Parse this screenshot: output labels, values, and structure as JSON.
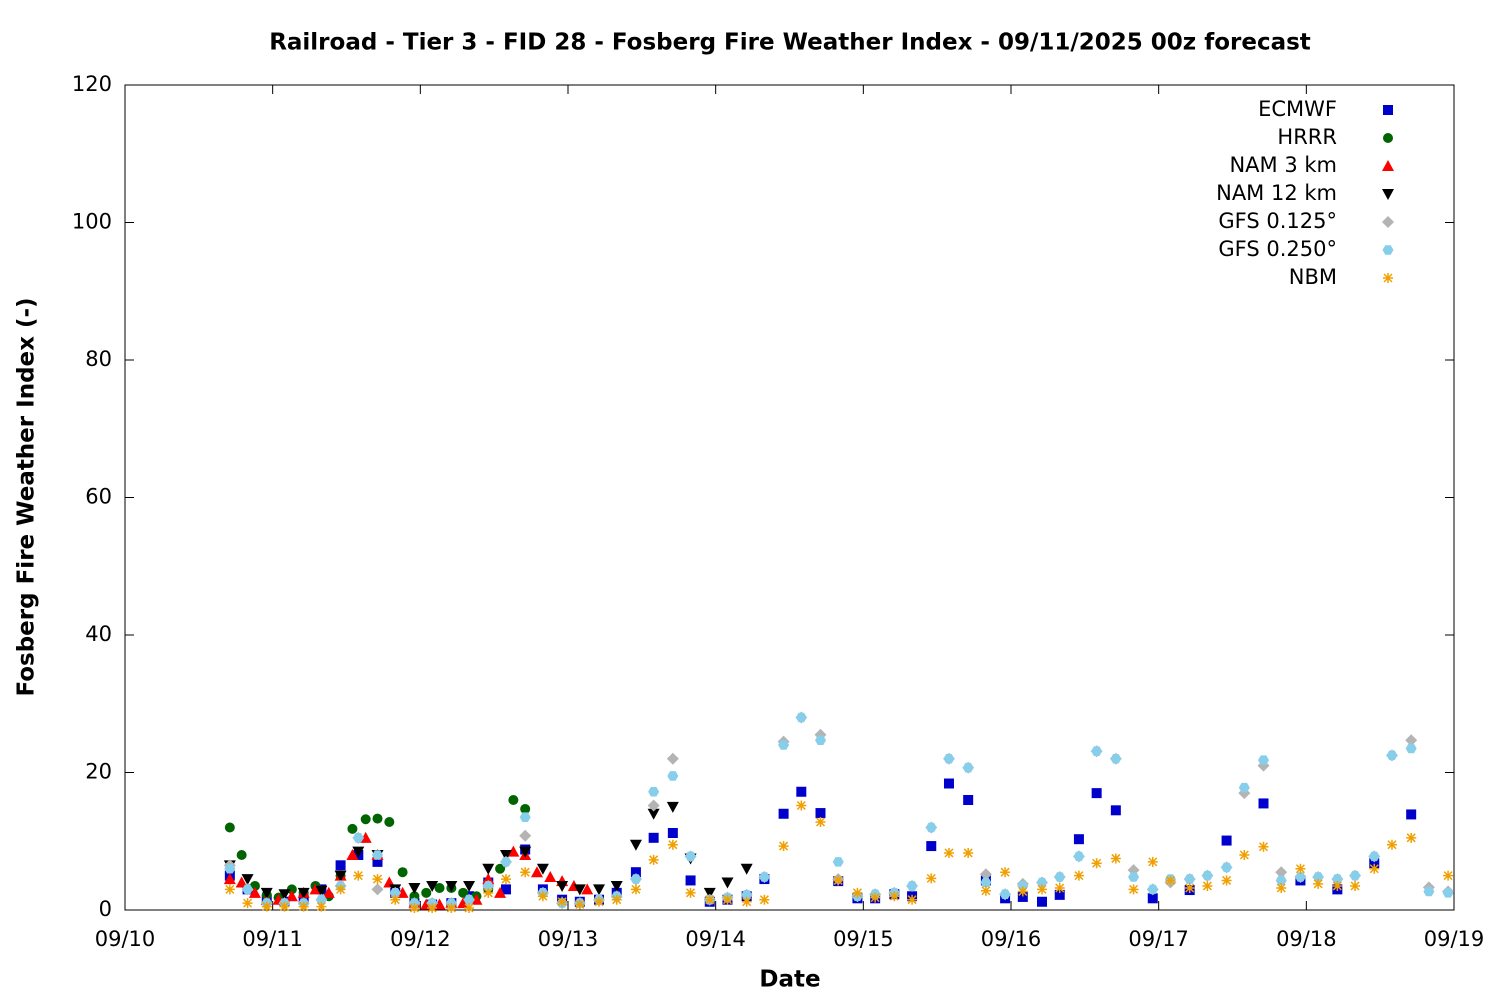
{
  "chart_data": {
    "type": "scatter",
    "title": "Railroad - Tier 3 - FID 28 - Fosberg Fire Weather Index - 09/11/2025 00z forecast",
    "xlabel": "Date",
    "ylabel": "Fosberg Fire Weather Index (-)",
    "xlim": [
      0,
      9
    ],
    "xticks": [
      {
        "value": 0,
        "label": "09/10"
      },
      {
        "value": 1,
        "label": "09/11"
      },
      {
        "value": 2,
        "label": "09/12"
      },
      {
        "value": 3,
        "label": "09/13"
      },
      {
        "value": 4,
        "label": "09/14"
      },
      {
        "value": 5,
        "label": "09/15"
      },
      {
        "value": 6,
        "label": "09/16"
      },
      {
        "value": 7,
        "label": "09/17"
      },
      {
        "value": 8,
        "label": "09/18"
      },
      {
        "value": 9,
        "label": "09/19"
      }
    ],
    "ylim": [
      0,
      120
    ],
    "yticks": [
      0,
      20,
      40,
      60,
      80,
      100,
      120
    ],
    "grid": false,
    "legend": "top right",
    "series": [
      {
        "name": "ECMWF",
        "color": "#0000cc",
        "marker": "square",
        "x": [
          0.71,
          0.83,
          0.96,
          1.08,
          1.21,
          1.33,
          1.46,
          1.58,
          1.71,
          1.83,
          1.96,
          2.08,
          2.21,
          2.33,
          2.46,
          2.58,
          2.71,
          2.83,
          2.96,
          3.08,
          3.21,
          3.33,
          3.46,
          3.58,
          3.71,
          3.83,
          3.96,
          4.08,
          4.21,
          4.33,
          4.46,
          4.58,
          4.71,
          4.83,
          4.96,
          5.08,
          5.21,
          5.33,
          5.46,
          5.58,
          5.71,
          5.83,
          5.96,
          6.08,
          6.21,
          6.33,
          6.46,
          6.58,
          6.71,
          6.96,
          7.21,
          7.46,
          7.71,
          7.96,
          8.21,
          8.46,
          8.71
        ],
        "values": [
          5,
          3,
          1.5,
          1.2,
          1.5,
          3,
          6.5,
          8,
          7,
          2.5,
          1,
          0.8,
          1,
          2,
          4,
          3,
          8.8,
          3,
          1.5,
          1.2,
          1.5,
          2.5,
          5.5,
          10.5,
          11.2,
          4.3,
          1.2,
          1.5,
          2,
          4.5,
          14,
          17.2,
          14.1,
          4.2,
          1.7,
          1.7,
          2.3,
          2,
          9.3,
          18.4,
          16,
          4.3,
          1.7,
          1.9,
          1.2,
          2.2,
          10.3,
          17,
          14.5,
          1.7,
          2.9,
          10.1,
          15.5,
          4.3,
          3,
          6.8,
          13.9
        ]
      },
      {
        "name": "HRRR",
        "color": "#006400",
        "marker": "circle",
        "x": [
          0.71,
          0.79,
          0.88,
          0.96,
          1.04,
          1.13,
          1.21,
          1.29,
          1.38,
          1.46,
          1.54,
          1.63,
          1.71,
          1.79,
          1.88,
          1.96,
          2.04,
          2.13,
          2.21,
          2.29,
          2.38,
          2.46,
          2.54,
          2.63,
          2.71
        ],
        "values": [
          12,
          8,
          3.5,
          2.2,
          1.8,
          3,
          2.5,
          3.5,
          2,
          5,
          11.8,
          13.2,
          13.3,
          12.8,
          5.5,
          2,
          2.5,
          3.2,
          3.2,
          2.5,
          2,
          3,
          6,
          16,
          14.7
        ]
      },
      {
        "name": "NAM 3 km",
        "color": "#ff0000",
        "marker": "triangle",
        "x": [
          0.71,
          0.79,
          0.88,
          0.96,
          1.04,
          1.13,
          1.21,
          1.29,
          1.38,
          1.46,
          1.54,
          1.63,
          1.71,
          1.79,
          1.88,
          1.96,
          2.04,
          2.13,
          2.21,
          2.29,
          2.38,
          2.46,
          2.54,
          2.63,
          2.71,
          2.79,
          2.88,
          2.96,
          3.04,
          3.13
        ],
        "values": [
          4.5,
          4,
          2.5,
          1.5,
          1.5,
          2,
          2.5,
          3,
          2.5,
          5,
          8,
          10.5,
          8,
          4,
          2.5,
          1,
          0.8,
          0.8,
          1,
          1,
          1.5,
          4.5,
          2.5,
          8.5,
          8,
          5.5,
          4.8,
          4.2,
          3.5,
          3
        ]
      },
      {
        "name": "NAM 12 km",
        "color": "#000000",
        "marker": "triangle-down",
        "x": [
          0.71,
          0.83,
          0.96,
          1.08,
          1.21,
          1.33,
          1.46,
          1.58,
          1.71,
          1.83,
          1.96,
          2.08,
          2.21,
          2.33,
          2.46,
          2.58,
          2.71,
          2.83,
          2.96,
          3.08,
          3.21,
          3.33,
          3.46,
          3.58,
          3.71,
          3.83,
          3.96,
          4.08,
          4.21
        ],
        "values": [
          6.5,
          4.5,
          2.5,
          2.3,
          2.5,
          2.8,
          5,
          8.5,
          8,
          3,
          3.2,
          3.5,
          3.5,
          3.5,
          6,
          8,
          8.5,
          6,
          3.5,
          3,
          3,
          3.5,
          9.5,
          14,
          15,
          7.5,
          2.5,
          4,
          6
        ]
      },
      {
        "name": "GFS 0.125°",
        "color": "#b4b4b4",
        "marker": "diamond",
        "x": [
          0.71,
          0.83,
          0.96,
          1.08,
          1.21,
          1.33,
          1.46,
          1.58,
          1.71,
          1.83,
          1.96,
          2.08,
          2.21,
          2.33,
          2.46,
          2.58,
          2.71,
          2.83,
          2.96,
          3.08,
          3.21,
          3.33,
          3.46,
          3.58,
          3.71,
          3.83,
          3.96,
          4.08,
          4.21,
          4.33,
          4.46,
          4.58,
          4.71,
          4.83,
          4.96,
          5.08,
          5.21,
          5.33,
          5.46,
          5.58,
          5.71,
          5.83,
          5.96,
          6.08,
          6.21,
          6.33,
          6.46,
          6.58,
          6.71,
          6.83,
          6.96,
          7.08,
          7.21,
          7.33,
          7.46,
          7.58,
          7.71,
          7.83,
          7.96,
          8.08,
          8.21,
          8.33,
          8.46,
          8.58,
          8.71,
          8.83,
          8.96
        ],
        "values": [
          6.5,
          3,
          1,
          1,
          1,
          1.5,
          3.5,
          10.5,
          3,
          2.5,
          1,
          1,
          1,
          1.5,
          3.5,
          7,
          10.8,
          2.5,
          1,
          1,
          1.5,
          2,
          4.5,
          15.2,
          22,
          7.8,
          1.5,
          1.8,
          2.2,
          4.8,
          24.5,
          28,
          25.5,
          4.5,
          2,
          2.3,
          2.5,
          3.5,
          12,
          22,
          20.7,
          5.2,
          2.3,
          3.8,
          4,
          4.8,
          7.8,
          23.1,
          22,
          5.8,
          3,
          4,
          4.5,
          5,
          6.2,
          17,
          21,
          5.5,
          4.8,
          4.8,
          4.5,
          5,
          7.8,
          22.5,
          24.7,
          3.3,
          2.7
        ]
      },
      {
        "name": "GFS 0.250°",
        "color": "#87ceeb",
        "marker": "hexagon",
        "x": [
          0.71,
          0.83,
          0.96,
          1.08,
          1.21,
          1.33,
          1.46,
          1.58,
          1.71,
          1.83,
          1.96,
          2.08,
          2.21,
          2.33,
          2.46,
          2.58,
          2.71,
          2.83,
          2.96,
          3.08,
          3.21,
          3.33,
          3.46,
          3.58,
          3.71,
          3.83,
          3.96,
          4.08,
          4.21,
          4.33,
          4.46,
          4.58,
          4.71,
          4.83,
          4.96,
          5.08,
          5.21,
          5.33,
          5.46,
          5.58,
          5.71,
          5.83,
          5.96,
          6.08,
          6.21,
          6.33,
          6.46,
          6.58,
          6.71,
          6.83,
          6.96,
          7.08,
          7.21,
          7.33,
          7.46,
          7.58,
          7.71,
          7.83,
          7.96,
          8.08,
          8.21,
          8.33,
          8.46,
          8.58,
          8.71,
          8.83,
          8.96
        ],
        "values": [
          6,
          3,
          1,
          1,
          1,
          1.5,
          3.5,
          10.5,
          8,
          2.5,
          1,
          1,
          1,
          1.5,
          3.5,
          7,
          13.5,
          2.5,
          1,
          1,
          1.5,
          2,
          4.5,
          17.2,
          19.5,
          7.8,
          1.5,
          1.8,
          2.2,
          4.8,
          24,
          28,
          24.7,
          7,
          2,
          2.3,
          2.5,
          3.5,
          12,
          22,
          20.7,
          4,
          2.3,
          3.5,
          4,
          4.8,
          7.8,
          23.1,
          22,
          4.8,
          3,
          4.5,
          4.5,
          5,
          6.2,
          17.8,
          21.8,
          4.3,
          4.8,
          4.8,
          4.5,
          5,
          7.8,
          22.5,
          23.5,
          2.7,
          2.5
        ]
      },
      {
        "name": "NBM",
        "color": "#f0a000",
        "marker": "asterisk",
        "x": [
          0.71,
          0.83,
          0.96,
          1.08,
          1.21,
          1.33,
          1.46,
          1.58,
          1.71,
          1.83,
          1.96,
          2.08,
          2.21,
          2.33,
          2.46,
          2.58,
          2.71,
          2.83,
          2.96,
          3.08,
          3.21,
          3.33,
          3.46,
          3.58,
          3.71,
          3.83,
          3.96,
          4.08,
          4.21,
          4.33,
          4.46,
          4.58,
          4.71,
          4.83,
          4.96,
          5.08,
          5.21,
          5.33,
          5.46,
          5.58,
          5.71,
          5.83,
          5.96,
          6.08,
          6.21,
          6.33,
          6.46,
          6.58,
          6.71,
          6.83,
          6.96,
          7.08,
          7.21,
          7.33,
          7.46,
          7.58,
          7.71,
          7.83,
          7.96,
          8.08,
          8.21,
          8.33,
          8.46,
          8.58,
          8.71,
          8.96
        ],
        "values": [
          3,
          1,
          0.5,
          0.5,
          0.5,
          0.5,
          3,
          5,
          4.5,
          1.5,
          0.3,
          0.3,
          0.3,
          0.3,
          2.5,
          4.5,
          5.5,
          2,
          1.2,
          0.8,
          1.2,
          1.5,
          3,
          7.3,
          9.5,
          2.5,
          1.5,
          1.5,
          1.2,
          1.5,
          9.3,
          15.2,
          12.8,
          4.3,
          2.5,
          1.8,
          2,
          1.5,
          4.6,
          8.3,
          8.3,
          2.8,
          5.5,
          2.7,
          3,
          3.2,
          5,
          6.8,
          7.5,
          3,
          7,
          4.3,
          3.2,
          3.5,
          4.3,
          8,
          9.2,
          3.2,
          6,
          3.8,
          3.5,
          3.5,
          6,
          9.5,
          10.5,
          5
        ]
      }
    ]
  }
}
